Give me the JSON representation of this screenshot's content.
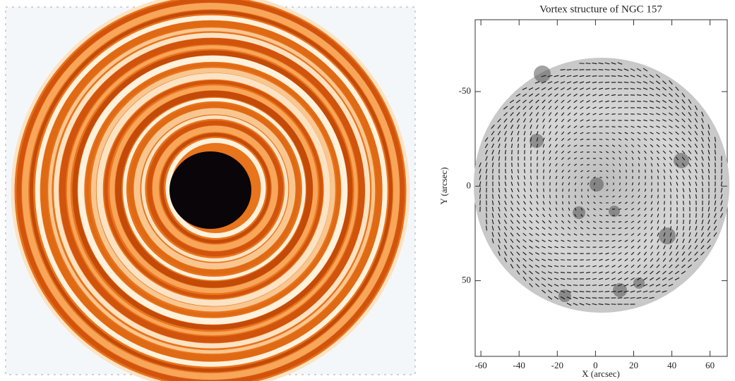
{
  "chart_data": {
    "type": "vector-field",
    "title": "Vortex structure of NGC 157",
    "x_label": "X (arcsec)",
    "y_label": "Y (arcsec)",
    "xlim": [
      -63,
      69
    ],
    "xticks": [
      -60,
      -40,
      -20,
      0,
      20,
      40,
      60
    ],
    "ylim": [
      -88,
      90
    ],
    "yticks": [
      -50,
      0,
      50
    ],
    "y_inverted": true
  }
}
